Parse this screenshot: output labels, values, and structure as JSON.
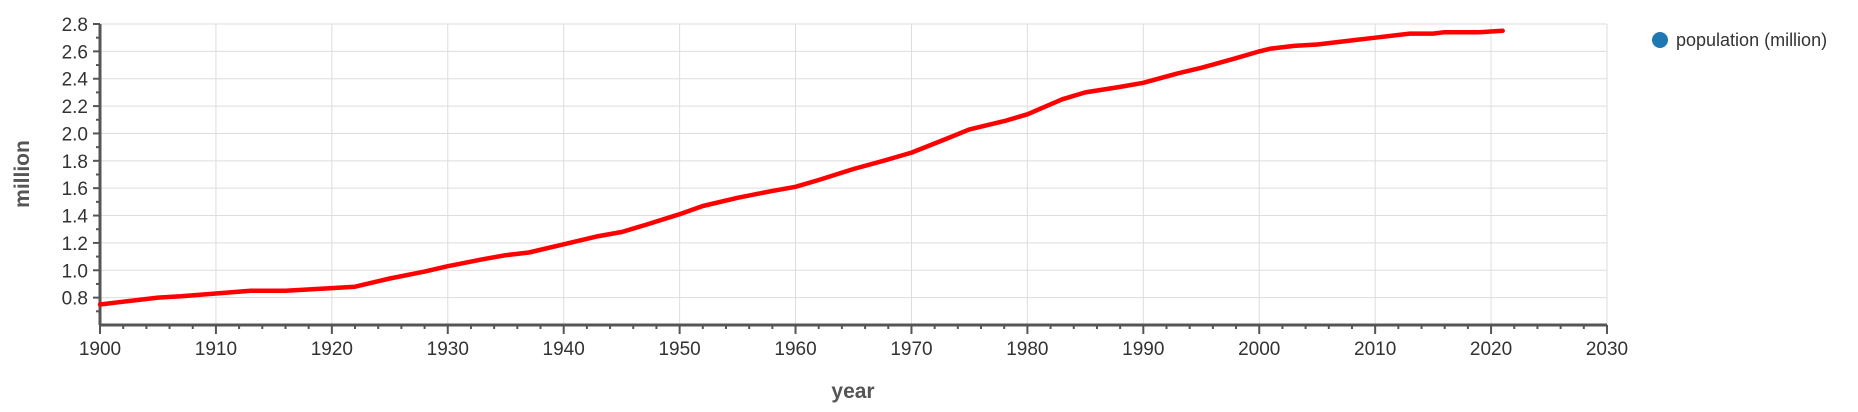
{
  "chart_data": {
    "type": "line",
    "title": "",
    "xlabel": "year",
    "ylabel": "million",
    "xlim": [
      1900,
      2030
    ],
    "ylim": [
      0.6,
      2.8
    ],
    "x_ticks": [
      "1900",
      "1910",
      "1920",
      "1930",
      "1940",
      "1950",
      "1960",
      "1970",
      "1980",
      "1990",
      "2000",
      "2010",
      "2020",
      "2030"
    ],
    "y_ticks": [
      "0.8",
      "1.0",
      "1.2",
      "1.4",
      "1.6",
      "1.8",
      "2.0",
      "2.2",
      "2.4",
      "2.6",
      "2.8"
    ],
    "grid": true,
    "legend_position": "top-right",
    "series": [
      {
        "name": "population (million)",
        "color": "#ff0000",
        "legend_color": "#1f77b4",
        "x": [
          1900,
          1902,
          1905,
          1907,
          1910,
          1913,
          1916,
          1920,
          1922,
          1925,
          1928,
          1930,
          1933,
          1935,
          1937,
          1940,
          1943,
          1945,
          1947,
          1950,
          1952,
          1955,
          1958,
          1960,
          1962,
          1965,
          1968,
          1970,
          1973,
          1975,
          1978,
          1980,
          1983,
          1985,
          1988,
          1990,
          1993,
          1995,
          1998,
          2000,
          2001,
          2003,
          2005,
          2008,
          2010,
          2013,
          2015,
          2016,
          2019,
          2021
        ],
        "values": [
          0.75,
          0.77,
          0.8,
          0.81,
          0.83,
          0.85,
          0.85,
          0.87,
          0.88,
          0.94,
          0.99,
          1.03,
          1.08,
          1.11,
          1.13,
          1.19,
          1.25,
          1.28,
          1.33,
          1.41,
          1.47,
          1.53,
          1.58,
          1.61,
          1.66,
          1.74,
          1.81,
          1.86,
          1.96,
          2.03,
          2.09,
          2.14,
          2.25,
          2.3,
          2.34,
          2.37,
          2.44,
          2.48,
          2.55,
          2.6,
          2.62,
          2.64,
          2.65,
          2.68,
          2.7,
          2.73,
          2.73,
          2.74,
          2.74,
          2.75
        ]
      }
    ]
  }
}
